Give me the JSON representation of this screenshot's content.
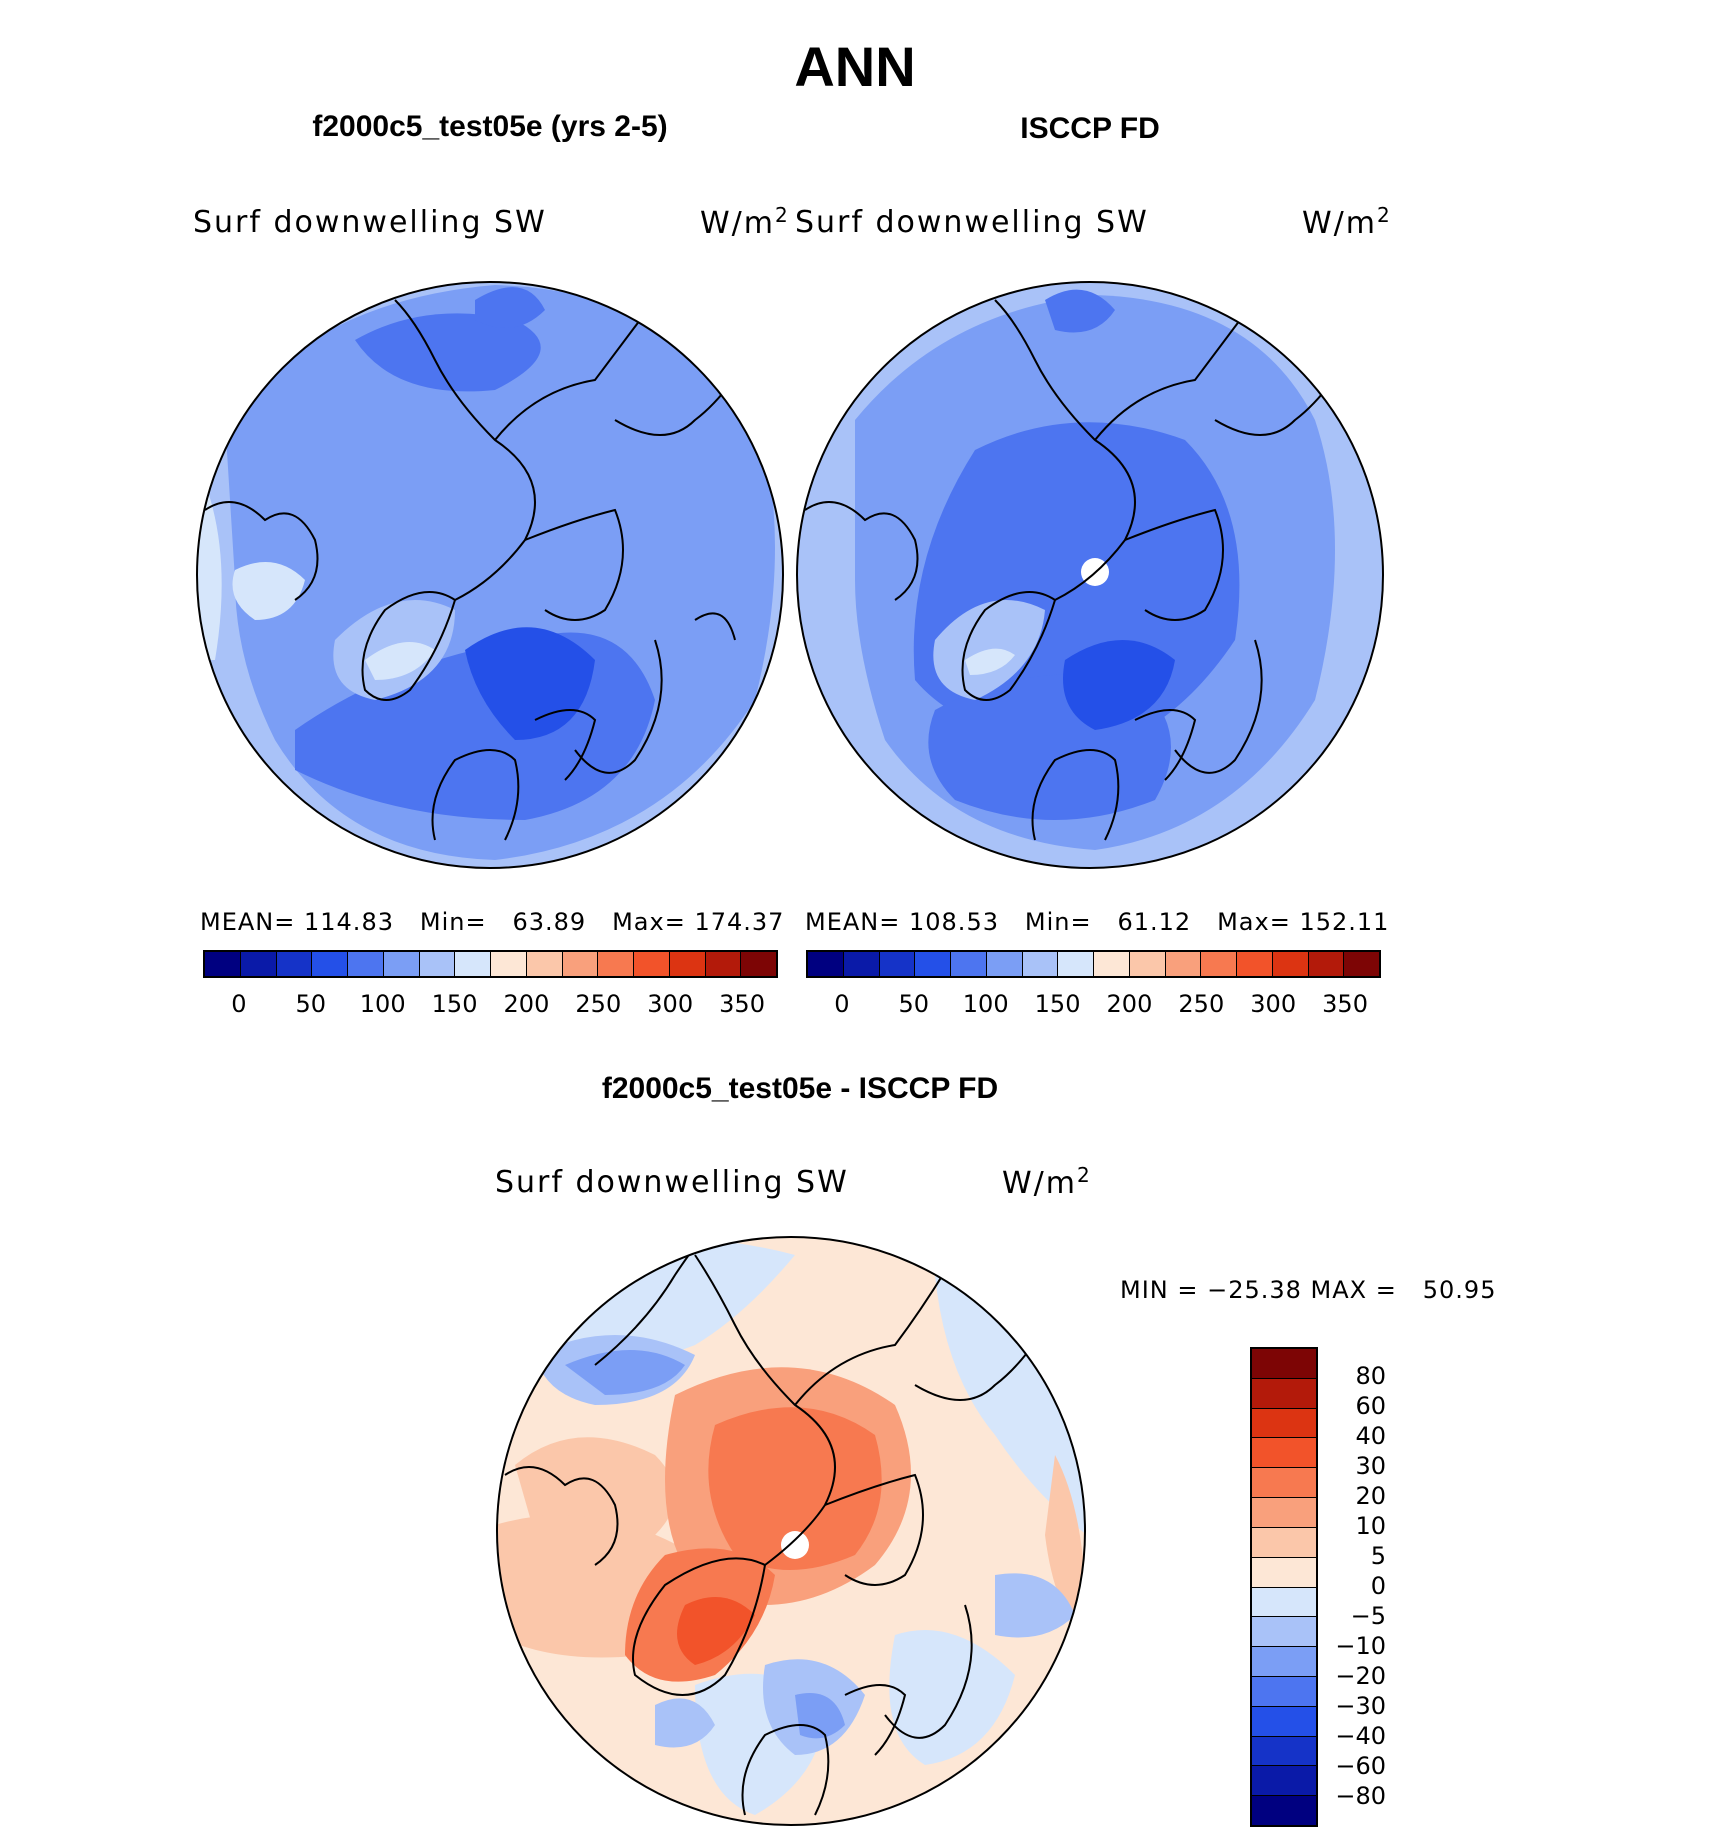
{
  "figure_title": "ANN",
  "panel_left": {
    "title": "f2000c5_test05e (yrs 2-5)",
    "variable": "Surf downwelling SW",
    "units_base": "W/m",
    "units_exp": "2",
    "mean_label": "MEAN=",
    "mean": "114.83",
    "min_label": "Min=",
    "min": "63.89",
    "max_label": "Max=",
    "max": "174.37"
  },
  "panel_right": {
    "title": "ISCCP FD",
    "variable": "Surf downwelling SW",
    "units_base": "W/m",
    "units_exp": "2",
    "mean_label": "MEAN=",
    "mean": "108.53",
    "min_label": "Min=",
    "min": "61.12",
    "max_label": "Max=",
    "max": "152.11"
  },
  "panel_diff": {
    "title": "f2000c5_test05e - ISCCP FD",
    "variable": "Surf downwelling SW",
    "units_base": "W/m",
    "units_exp": "2",
    "minmax_text": "MIN = −25.38 MAX =",
    "max_value": "50.95"
  },
  "abs_colorbar": {
    "colors": [
      "#000080",
      "#0a1aa8",
      "#1533c8",
      "#2450e8",
      "#4d75f0",
      "#7b9ef5",
      "#a9c2f8",
      "#d6e6fb",
      "#fde7d6",
      "#fbc7aa",
      "#f9a07c",
      "#f77950",
      "#f2532a",
      "#dc3412",
      "#b31a0a",
      "#7d0505"
    ],
    "ticks": [
      "0",
      "50",
      "100",
      "150",
      "200",
      "250",
      "300",
      "350"
    ]
  },
  "diff_colorbar": {
    "colors": [
      "#7d0505",
      "#b31a0a",
      "#dc3412",
      "#f2532a",
      "#f77950",
      "#f9a07c",
      "#fbc7aa",
      "#fde7d6",
      "#d6e6fb",
      "#a9c2f8",
      "#7b9ef5",
      "#4d75f0",
      "#2450e8",
      "#1533c8",
      "#0a1aa8",
      "#000080"
    ],
    "ticks": [
      "80",
      "60",
      "40",
      "30",
      "20",
      "10",
      "5",
      "0",
      "−5",
      "−10",
      "−20",
      "−30",
      "−40",
      "−60",
      "−80"
    ]
  }
}
